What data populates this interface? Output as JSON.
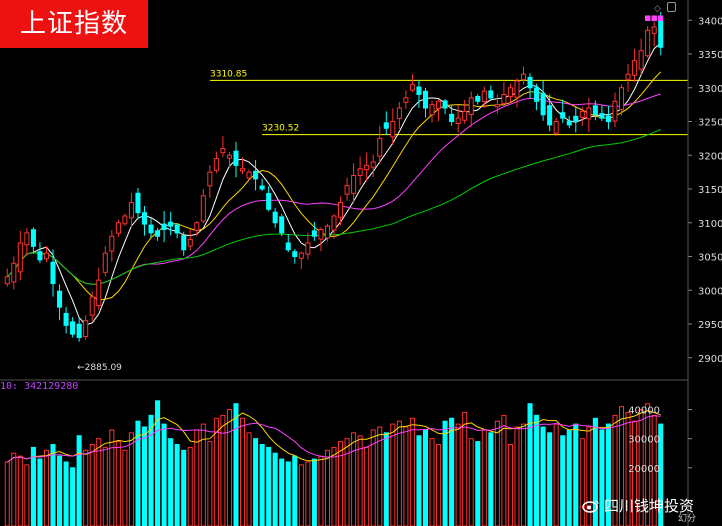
{
  "badge": {
    "title": "上证指数"
  },
  "volume_panel": {
    "label": "10: 342129280"
  },
  "watermark": {
    "text": "四川钱坤投资",
    "icon": "weibo-icon"
  },
  "corner_unit": "幻分",
  "colors": {
    "up": "#ff3030",
    "down": "#00ffff",
    "ma5": "#ffffff",
    "ma10": "#ffd700",
    "ma20": "#ff40ff",
    "ma60": "#00cc00",
    "hline": "#ffff00",
    "vol_ma5": "#ffd700",
    "vol_ma10": "#ff40ff"
  },
  "chart_data": {
    "type": "candlestick",
    "price_axis": {
      "ticks": [
        2900,
        2950,
        3000,
        3050,
        3100,
        3150,
        3200,
        3250,
        3300,
        3350,
        3400
      ],
      "range": [
        2870,
        3430
      ]
    },
    "volume_axis": {
      "ticks": [
        20000,
        30000,
        40000
      ],
      "range": [
        0,
        45000
      ]
    },
    "reference_lines": [
      {
        "label": "3310.85",
        "value": 3310.85
      },
      {
        "label": "3230.52",
        "value": 3230.52
      }
    ],
    "annotations": [
      {
        "label": "←2885.09",
        "value": 2885.09
      }
    ],
    "closes": [
      3020,
      3040,
      3070,
      3085,
      3065,
      3045,
      3055,
      3010,
      2975,
      2948,
      2935,
      2930,
      2955,
      2990,
      3015,
      3055,
      3080,
      3100,
      3110,
      3130,
      3115,
      3098,
      3085,
      3080,
      3090,
      3095,
      3085,
      3060,
      3075,
      3100,
      3140,
      3175,
      3195,
      3210,
      3200,
      3185,
      3180,
      3175,
      3165,
      3150,
      3120,
      3100,
      3085,
      3060,
      3050,
      3055,
      3070,
      3080,
      3090,
      3095,
      3110,
      3130,
      3155,
      3170,
      3180,
      3185,
      3190,
      3225,
      3240,
      3250,
      3270,
      3285,
      3305,
      3290,
      3270,
      3275,
      3280,
      3270,
      3250,
      3255,
      3265,
      3285,
      3280,
      3295,
      3285,
      3275,
      3290,
      3300,
      3310,
      3320,
      3300,
      3280,
      3260,
      3245,
      3250,
      3255,
      3245,
      3250,
      3265,
      3270,
      3260,
      3255,
      3250,
      3280,
      3300,
      3320,
      3340,
      3355,
      3385,
      3390,
      3360
    ],
    "volumes": [
      22000,
      25000,
      24000,
      21000,
      27000,
      23000,
      26000,
      28000,
      24000,
      22000,
      20000,
      31000,
      26000,
      28000,
      30000,
      27000,
      33000,
      29000,
      26000,
      32000,
      36000,
      34000,
      38000,
      43000,
      35000,
      30000,
      28000,
      26000,
      27000,
      33000,
      35000,
      29000,
      37000,
      38000,
      40000,
      42000,
      37000,
      32000,
      30000,
      28000,
      27000,
      25000,
      23000,
      22000,
      24000,
      21000,
      22000,
      23000,
      24000,
      26000,
      27000,
      29000,
      30000,
      32000,
      31000,
      27000,
      33000,
      34000,
      32000,
      35000,
      36000,
      34000,
      37000,
      31000,
      33000,
      30000,
      28000,
      36000,
      37000,
      35000,
      39000,
      30000,
      29000,
      33000,
      32000,
      36000,
      38000,
      28000,
      34000,
      35000,
      42000,
      38000,
      34000,
      32000,
      35000,
      31000,
      33000,
      35000,
      30000,
      34000,
      37000,
      33000,
      35000,
      38000,
      41000,
      39000,
      36000,
      40000,
      42000,
      38000,
      35000
    ]
  }
}
